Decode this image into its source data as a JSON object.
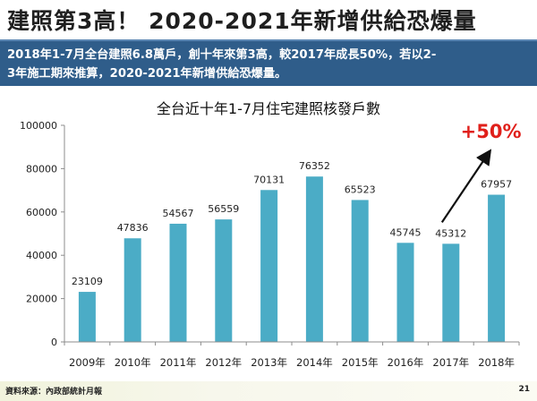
{
  "slide": {
    "title": "建照第3高！ 2020-2021年新增供給恐爆量",
    "banner_line1": "2018年1-7月全台建照6.8萬戶，創十年來第3高，較2017年成長50%，若以2-",
    "banner_line2": "3年施工期來推算，2020-2021年新增供給恐爆量。",
    "source": "資料來源：內政部統計月報",
    "page_number": "21"
  },
  "chart_data": {
    "type": "bar",
    "title": "全台近十年1-7月住宅建照核發戶數",
    "categories": [
      "2009年",
      "2010年",
      "2011年",
      "2012年",
      "2013年",
      "2014年",
      "2015年",
      "2016年",
      "2017年",
      "2018年"
    ],
    "values": [
      23109,
      47836,
      54567,
      56559,
      70131,
      76352,
      65523,
      45745,
      45312,
      67957
    ],
    "value_labels": [
      "23109",
      "47836",
      "54567",
      "56559",
      "70131",
      "76352",
      "65523",
      "45745",
      "45312",
      "67957"
    ],
    "ylim": [
      0,
      100000
    ],
    "yticks": [
      0,
      20000,
      40000,
      60000,
      80000,
      100000
    ],
    "ytick_labels": [
      "0",
      "20000",
      "40000",
      "60000",
      "80000",
      "100000"
    ],
    "xlabel": "",
    "ylabel": "",
    "grid": false,
    "bar_color": "#4bacc6",
    "annotation": {
      "text": "+50%",
      "color": "#e0201b"
    },
    "arrow_color": "#111111"
  }
}
